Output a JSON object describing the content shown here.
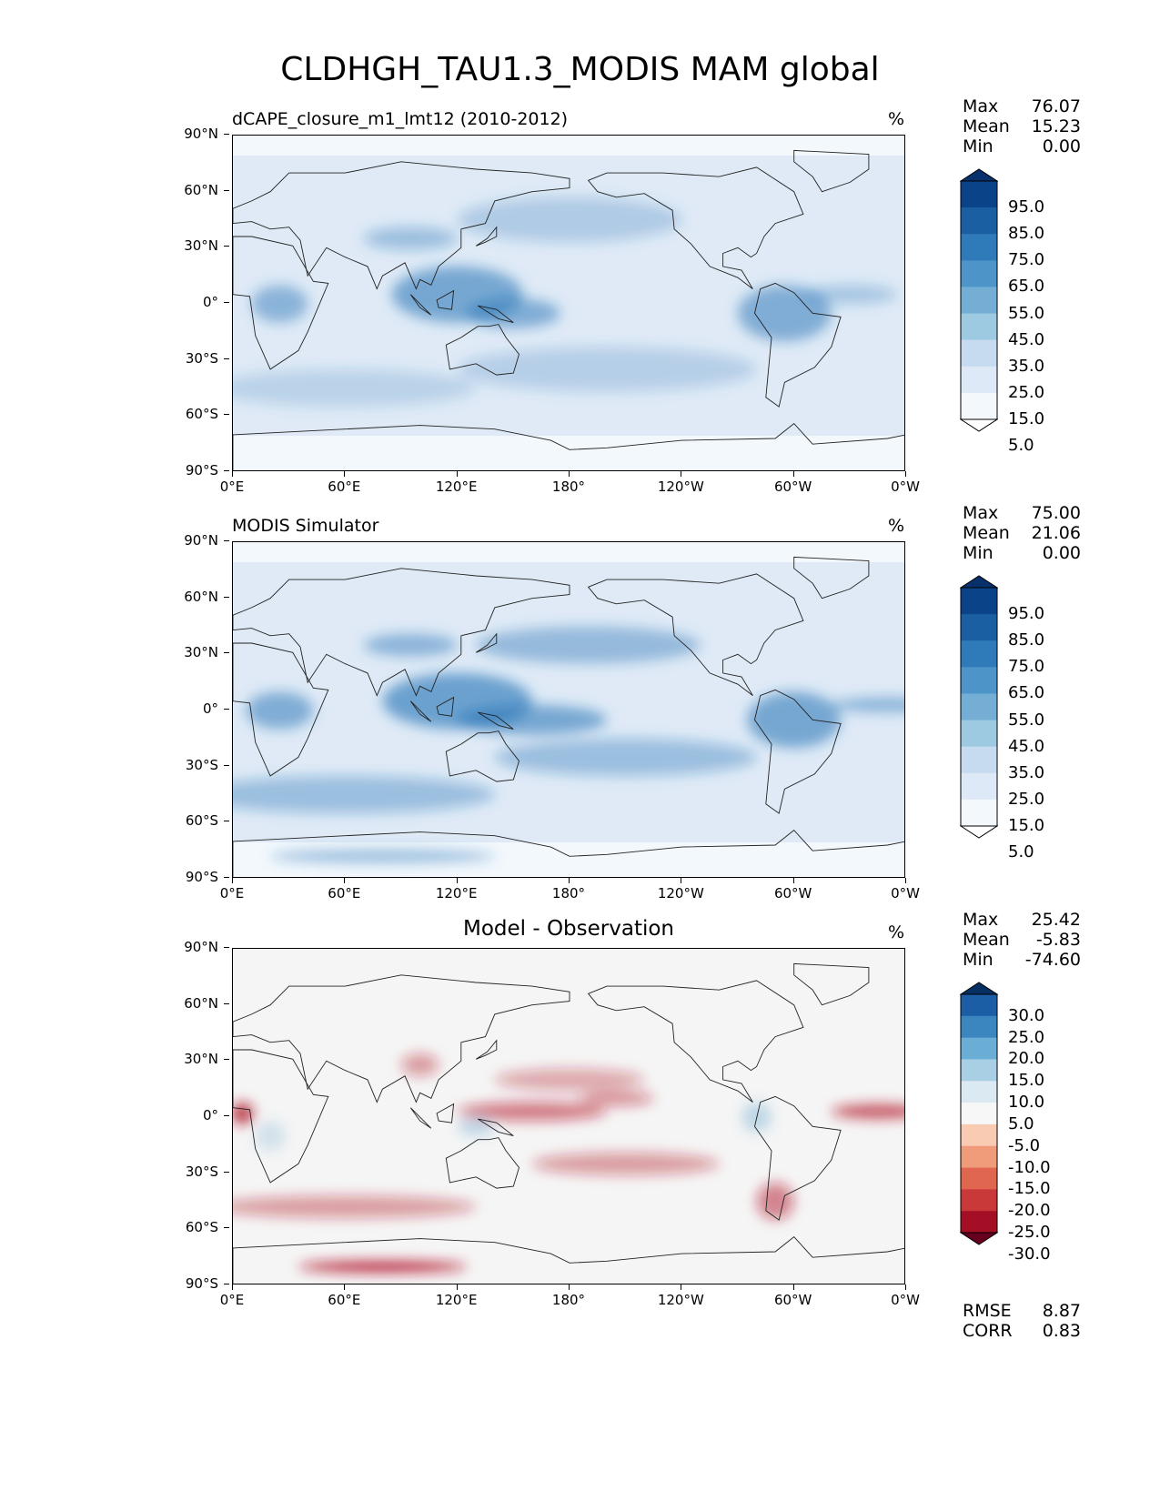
{
  "title": "CLDHGH_TAU1.3_MODIS MAM global",
  "lat_ticks": [
    "90°N",
    "60°N",
    "30°N",
    "0°",
    "30°S",
    "60°S",
    "90°S"
  ],
  "lon_ticks": [
    "0°E",
    "60°E",
    "120°E",
    "180°",
    "120°W",
    "60°W",
    "0°W"
  ],
  "panels": [
    {
      "subtitle": "dCAPE_closure_m1_lmt12 (2010-2012)",
      "subtitle_align": "left",
      "units": "%",
      "stats": [
        {
          "label": "Max",
          "value": "76.07"
        },
        {
          "label": "Mean",
          "value": "15.23"
        },
        {
          "label": "Min",
          "value": "0.00"
        }
      ],
      "colorbar_labels": [
        "95.0",
        "85.0",
        "75.0",
        "65.0",
        "55.0",
        "45.0",
        "35.0",
        "25.0",
        "15.0",
        "5.0"
      ],
      "colorbar_colors": [
        "#ffffff",
        "#f3f8fd",
        "#dde9f6",
        "#c6dbef",
        "#9ecae1",
        "#74aed5",
        "#4d95c9",
        "#2f7ab8",
        "#1b5fa3",
        "#0b4389",
        "#08306b"
      ],
      "palette": "blues"
    },
    {
      "subtitle": "MODIS Simulator",
      "subtitle_align": "left",
      "units": "%",
      "stats": [
        {
          "label": "Max",
          "value": "75.00"
        },
        {
          "label": "Mean",
          "value": "21.06"
        },
        {
          "label": "Min",
          "value": "0.00"
        }
      ],
      "colorbar_labels": [
        "95.0",
        "85.0",
        "75.0",
        "65.0",
        "55.0",
        "45.0",
        "35.0",
        "25.0",
        "15.0",
        "5.0"
      ],
      "colorbar_colors": [
        "#ffffff",
        "#f3f8fd",
        "#dde9f6",
        "#c6dbef",
        "#9ecae1",
        "#74aed5",
        "#4d95c9",
        "#2f7ab8",
        "#1b5fa3",
        "#0b4389",
        "#08306b"
      ],
      "palette": "blues"
    },
    {
      "subtitle": "Model - Observation",
      "subtitle_align": "center",
      "units": "%",
      "stats": [
        {
          "label": "Max",
          "value": "25.42"
        },
        {
          "label": "Mean",
          "value": "-5.83"
        },
        {
          "label": "Min",
          "value": "-74.60"
        }
      ],
      "colorbar_labels": [
        "30.0",
        "25.0",
        "20.0",
        "15.0",
        "10.0",
        "5.0",
        "-5.0",
        "-10.0",
        "-15.0",
        "-20.0",
        "-25.0",
        "-30.0"
      ],
      "colorbar_colors": [
        "#67001f",
        "#a50f26",
        "#c9393a",
        "#e0664f",
        "#f09c7b",
        "#f9cbb3",
        "#f7f7f7",
        "#dbeaf2",
        "#a8cfe4",
        "#6aaed5",
        "#3b86bf",
        "#1c5ea5",
        "#053061"
      ],
      "palette": "diff"
    }
  ],
  "bottom_stats": [
    {
      "label": "RMSE",
      "value": "8.87"
    },
    {
      "label": "CORR",
      "value": "0.83"
    }
  ]
}
